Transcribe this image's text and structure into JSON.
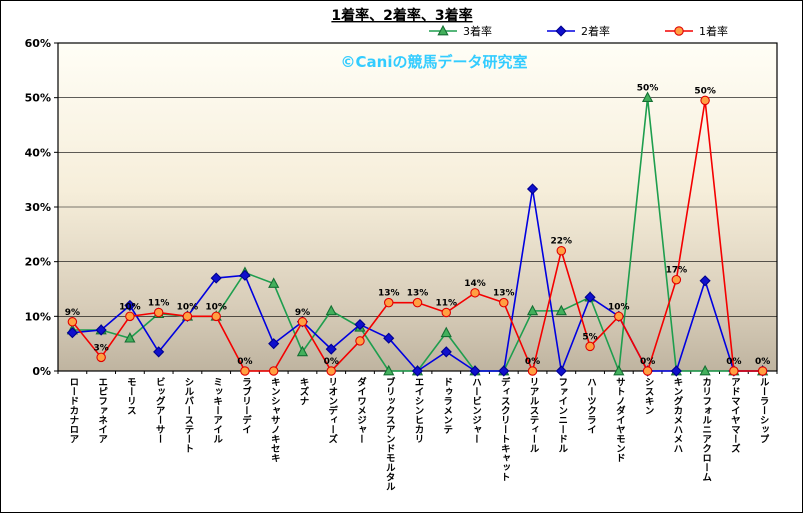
{
  "watermark": "©Caniの競馬データ研究室",
  "watermark_color": "#33CCFF",
  "chart_data": {
    "type": "line",
    "title": "1着率、2着率、3着率",
    "xlabel": "",
    "ylabel": "",
    "ylim": [
      0,
      60
    ],
    "yticks": [
      "0%",
      "10%",
      "20%",
      "30%",
      "40%",
      "50%",
      "60%"
    ],
    "grid": true,
    "legend_position": "top-right",
    "categories": [
      "ロードカナロア",
      "エピファネイア",
      "モーリス",
      "ビッグアーサー",
      "シルバーステート",
      "ミッキーアイル",
      "ラブリーデイ",
      "キンシャサノキセキ",
      "キズナ",
      "リオンディーズ",
      "ダイワメジャー",
      "ブリックスアンドモルタル",
      "エイシンヒカリ",
      "ドゥラメンテ",
      "ハービンジャー",
      "ディスクリートキャット",
      "リアルスティール",
      "ファインニードル",
      "ハーツクライ",
      "サトノダイヤモンド",
      "シスキン",
      "キングカメハメハ",
      "カリフォルニアクローム",
      "アドマイヤマーズ",
      "ルーラーシップ"
    ],
    "series": [
      {
        "name": "3着率",
        "marker": "triangle",
        "line_color": "#1E9E4E",
        "marker_fill": "#43B05C",
        "marker_stroke": "#156F33",
        "values": [
          7.5,
          7.5,
          6,
          10.5,
          10,
          10,
          18,
          16,
          3.5,
          11,
          8,
          0,
          0,
          7,
          0,
          0,
          11,
          11,
          13.5,
          0,
          50,
          0,
          0,
          0,
          0
        ],
        "labels": [
          "",
          "",
          "",
          "",
          "",
          "",
          "",
          "",
          "",
          "",
          "",
          "",
          "",
          "",
          "",
          "",
          "",
          "",
          "",
          "",
          "50%",
          "",
          "",
          "",
          ""
        ]
      },
      {
        "name": "2着率",
        "marker": "diamond",
        "line_color": "#0000E0",
        "marker_fill": "#1010CC",
        "marker_stroke": "#000090",
        "values": [
          7,
          7.5,
          12,
          3.5,
          10,
          17,
          17.5,
          5,
          9,
          4,
          8.5,
          6,
          0,
          3.5,
          0,
          0,
          33.3,
          0,
          13.5,
          10,
          0,
          0,
          16.5,
          0,
          0
        ],
        "labels": [
          "",
          "",
          "",
          "",
          "",
          "",
          "",
          "",
          "",
          "",
          "",
          "",
          "",
          "",
          "",
          "",
          "",
          "",
          "",
          "",
          "",
          "",
          "",
          "",
          ""
        ]
      },
      {
        "name": "1着率",
        "marker": "circle",
        "line_color": "#F40000",
        "marker_fill": "#FFA042",
        "marker_stroke": "#E00000",
        "values": [
          9,
          2.5,
          10,
          10.7,
          10,
          10,
          0,
          0,
          9,
          0,
          5.5,
          12.5,
          12.5,
          10.7,
          14.3,
          12.5,
          0,
          22,
          4.5,
          10,
          0,
          16.7,
          49.5,
          0,
          0
        ],
        "labels": [
          "9%",
          "3%",
          "10%",
          "11%",
          "10%",
          "10%",
          "0%",
          "",
          "9%",
          "0%",
          "",
          "13%",
          "13%",
          "11%",
          "14%",
          "13%",
          "0%",
          "22%",
          "5%",
          "10%",
          "0%",
          "17%",
          "50%",
          "0%",
          "0%"
        ]
      }
    ]
  }
}
